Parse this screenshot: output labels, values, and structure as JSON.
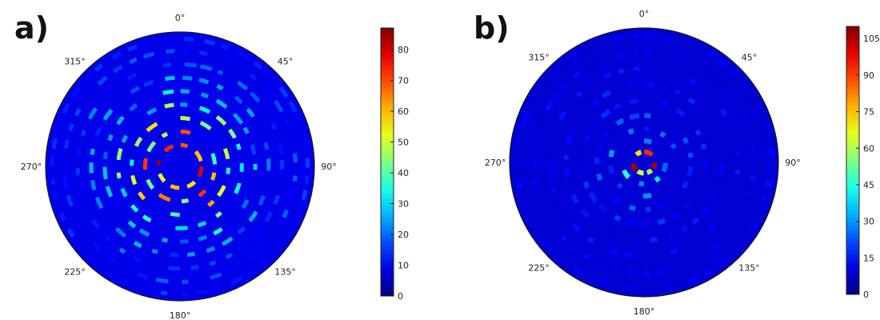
{
  "chart_data": [
    {
      "type": "heatmap",
      "projection": "polar",
      "panel_label": "a)",
      "angle_labels": [
        "0°",
        "45°",
        "90°",
        "135°",
        "180°",
        "225°",
        "270°",
        "315°"
      ],
      "colormap": "jet",
      "colorbar": {
        "min": 0,
        "max": 87,
        "ticks": [
          0,
          10,
          20,
          30,
          40,
          50,
          60,
          70,
          80
        ]
      },
      "pattern": "concentric rings of short arc segments; peak values in mid rings",
      "rings": [
        {
          "radius_fraction": 0.16,
          "value": 75
        },
        {
          "radius_fraction": 0.26,
          "value": 65
        },
        {
          "radius_fraction": 0.36,
          "value": 55
        },
        {
          "radius_fraction": 0.46,
          "value": 40
        },
        {
          "radius_fraction": 0.56,
          "value": 30
        },
        {
          "radius_fraction": 0.66,
          "value": 24
        },
        {
          "radius_fraction": 0.76,
          "value": 20
        },
        {
          "radius_fraction": 0.86,
          "value": 17
        },
        {
          "radius_fraction": 0.95,
          "value": 15
        }
      ]
    },
    {
      "type": "heatmap",
      "projection": "polar",
      "panel_label": "b)",
      "angle_labels": [
        "0°",
        "45°",
        "90°",
        "135°",
        "180°",
        "225°",
        "270°",
        "315°"
      ],
      "colormap": "jet",
      "colorbar": {
        "min": 0,
        "max": 110,
        "ticks": [
          0,
          15,
          30,
          45,
          60,
          75,
          90,
          105
        ]
      },
      "pattern": "high values concentrated near the centre, low elsewhere",
      "rings": [
        {
          "radius_fraction": 0.08,
          "value": 105
        },
        {
          "radius_fraction": 0.16,
          "value": 45
        },
        {
          "radius_fraction": 0.25,
          "value": 28
        },
        {
          "radius_fraction": 0.35,
          "value": 22
        },
        {
          "radius_fraction": 0.46,
          "value": 18
        },
        {
          "radius_fraction": 0.58,
          "value": 16
        },
        {
          "radius_fraction": 0.7,
          "value": 15
        },
        {
          "radius_fraction": 0.82,
          "value": 14
        },
        {
          "radius_fraction": 0.94,
          "value": 13
        }
      ]
    }
  ]
}
